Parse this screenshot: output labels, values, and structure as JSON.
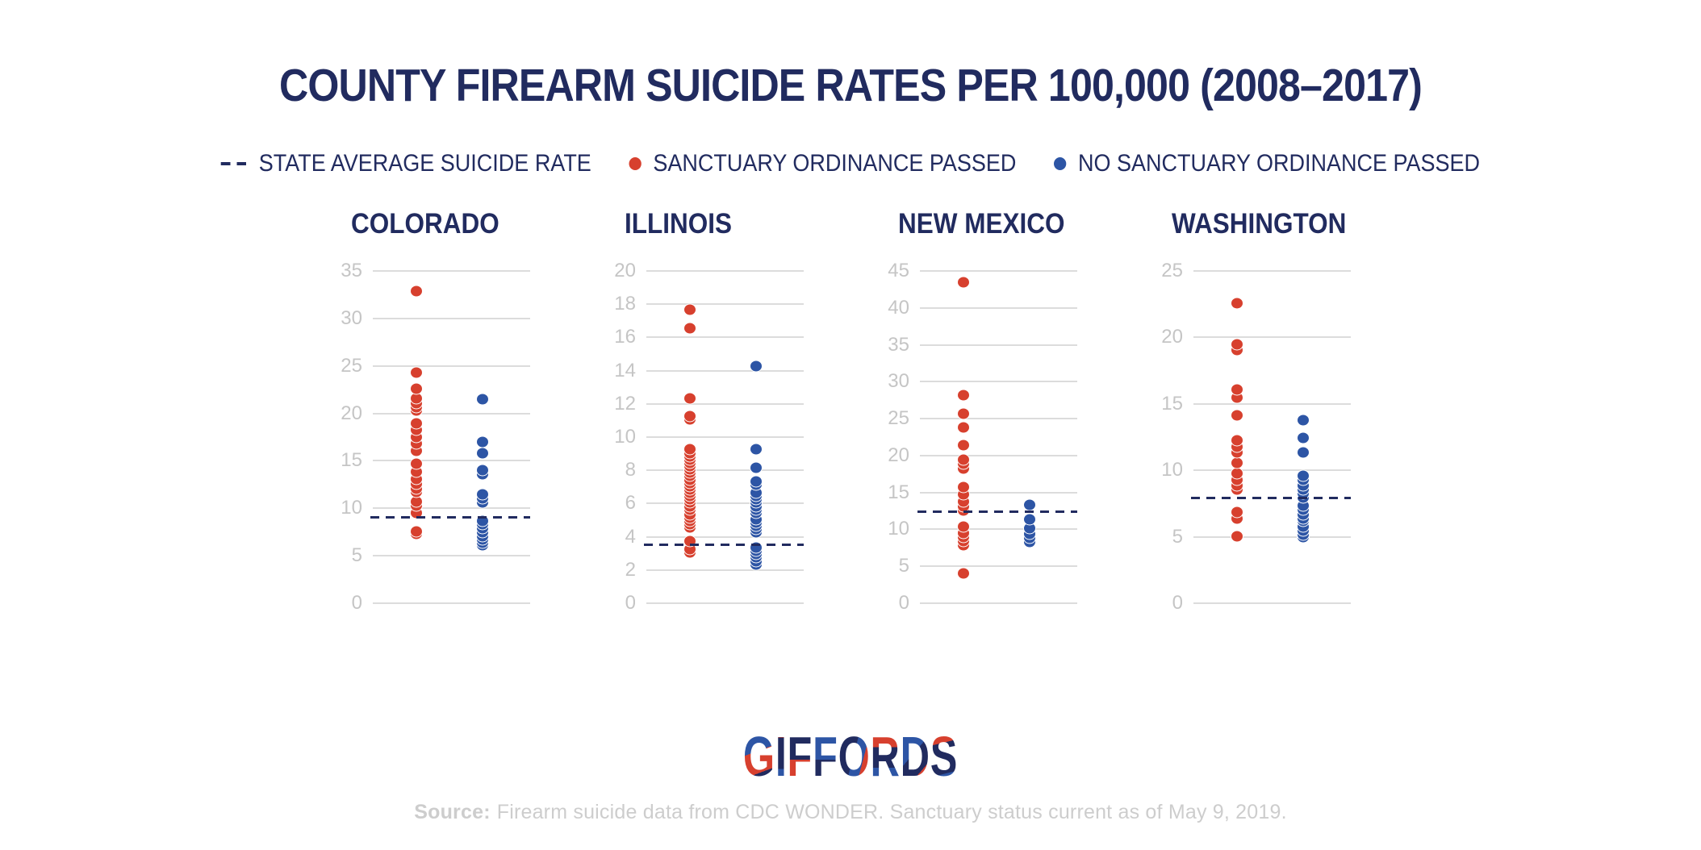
{
  "title": "COUNTY FIREARM SUICIDE RATES PER 100,000 (2008–2017)",
  "legend": {
    "avg_label": "STATE AVERAGE SUICIDE RATE",
    "sanctuary_label": "SANCTUARY ORDINANCE PASSED",
    "no_sanctuary_label": "NO SANCTUARY ORDINANCE PASSED"
  },
  "colors": {
    "navy": "#212b5f",
    "red": "#d7402e",
    "blue": "#2d55a5",
    "grid": "#dcdcdc",
    "tick_label": "#c5c5c5",
    "source_text": "#cdcdcd"
  },
  "chart_data": [
    {
      "type": "scatter",
      "state": "COLORADO",
      "ylim": [
        0,
        35
      ],
      "yticks": [
        0,
        5,
        10,
        15,
        20,
        25,
        30,
        35
      ],
      "grid": true,
      "state_average": 9.0,
      "series": [
        {
          "name": "Sanctuary ordinance passed",
          "color_key": "red",
          "values": [
            32.8,
            24.2,
            22.5,
            21.5,
            21.0,
            20.6,
            20.2,
            18.9,
            18.2,
            17.4,
            16.7,
            16.0,
            14.6,
            13.8,
            13.0,
            12.5,
            12.0,
            11.6,
            10.6,
            10.2,
            9.4,
            7.5,
            7.2
          ]
        },
        {
          "name": "No sanctuary ordinance passed",
          "color_key": "blue",
          "values": [
            21.4,
            16.9,
            15.7,
            13.9,
            13.5,
            11.4,
            11.0,
            10.5,
            8.6,
            8.2,
            7.8,
            7.4,
            7.0,
            6.6,
            6.3,
            6.0
          ]
        }
      ]
    },
    {
      "type": "scatter",
      "state": "ILLINOIS",
      "ylim": [
        0,
        20
      ],
      "yticks": [
        0,
        2,
        4,
        6,
        8,
        10,
        12,
        14,
        16,
        18,
        20
      ],
      "grid": true,
      "state_average": 3.5,
      "series": [
        {
          "name": "Sanctuary ordinance passed",
          "color_key": "red",
          "values": [
            17.6,
            16.5,
            12.3,
            11.2,
            11.0,
            9.2,
            9.0,
            8.8,
            8.6,
            8.4,
            8.2,
            8.0,
            7.8,
            7.6,
            7.4,
            7.2,
            7.0,
            6.8,
            6.6,
            6.4,
            6.2,
            6.0,
            5.8,
            5.6,
            5.3,
            5.1,
            4.9,
            4.7,
            4.5,
            3.7,
            3.2,
            3.0
          ]
        },
        {
          "name": "No sanctuary ordinance passed",
          "color_key": "blue",
          "values": [
            14.2,
            9.2,
            8.1,
            7.3,
            7.1,
            6.6,
            6.4,
            6.2,
            6.0,
            5.8,
            5.6,
            5.4,
            5.0,
            4.8,
            4.6,
            4.4,
            4.2,
            3.3,
            3.1,
            2.9,
            2.7,
            2.5,
            2.3
          ]
        }
      ]
    },
    {
      "type": "scatter",
      "state": "NEW MEXICO",
      "ylim": [
        0,
        45
      ],
      "yticks": [
        0,
        5,
        10,
        15,
        20,
        25,
        30,
        35,
        40,
        45
      ],
      "grid": true,
      "state_average": 12.3,
      "series": [
        {
          "name": "Sanctuary ordinance passed",
          "color_key": "red",
          "values": [
            43.4,
            28.1,
            25.6,
            23.7,
            21.3,
            19.3,
            18.8,
            18.1,
            15.6,
            14.6,
            13.7,
            13.0,
            12.5,
            10.3,
            9.4,
            8.8,
            8.3,
            7.8,
            3.9
          ]
        },
        {
          "name": "No sanctuary ordinance passed",
          "color_key": "blue",
          "values": [
            13.2,
            11.2,
            10.1,
            9.3,
            8.7,
            8.2
          ]
        }
      ]
    },
    {
      "type": "scatter",
      "state": "WASHINGTON",
      "ylim": [
        0,
        25
      ],
      "yticks": [
        0,
        5,
        10,
        15,
        20,
        25
      ],
      "grid": true,
      "state_average": 7.9,
      "series": [
        {
          "name": "Sanctuary ordinance passed",
          "color_key": "red",
          "values": [
            22.5,
            19.4,
            19.0,
            16.0,
            15.4,
            14.1,
            12.2,
            11.7,
            11.3,
            10.5,
            9.7,
            9.2,
            8.8,
            8.5,
            6.8,
            6.3,
            5.0
          ]
        },
        {
          "name": "No sanctuary ordinance passed",
          "color_key": "blue",
          "values": [
            13.7,
            12.4,
            11.3,
            9.5,
            9.2,
            8.8,
            8.5,
            8.2,
            7.9,
            7.3,
            7.0,
            6.6,
            6.3,
            6.1,
            5.7,
            5.4,
            5.1,
            4.9
          ]
        }
      ]
    }
  ],
  "logo": {
    "text": "GIFFORDS"
  },
  "source": {
    "prefix": "Source:",
    "text": "Firearm suicide data from CDC WONDER. Sanctuary status current as of May 9, 2019."
  }
}
